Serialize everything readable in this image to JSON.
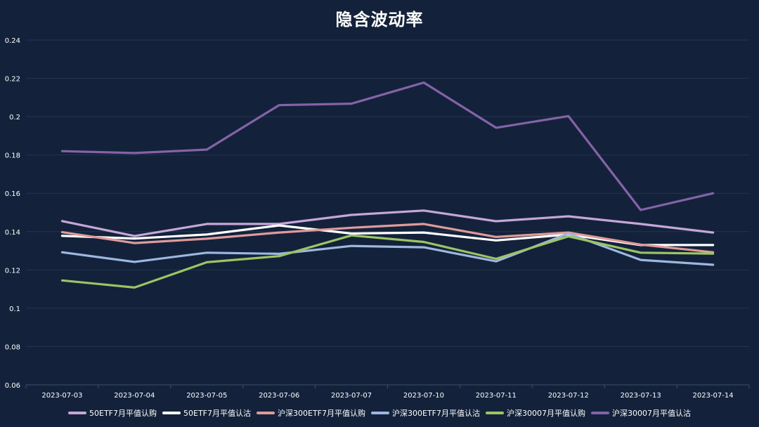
{
  "chart_data": {
    "type": "line",
    "title": "隐含波动率",
    "xlabel": "",
    "ylabel": "",
    "categories": [
      "2023-07-03",
      "2023-07-04",
      "2023-07-05",
      "2023-07-06",
      "2023-07-07",
      "2023-07-10",
      "2023-07-11",
      "2023-07-12",
      "2023-07-13",
      "2023-07-14"
    ],
    "ylim": [
      0.06,
      0.24
    ],
    "yticks": [
      "0.06",
      "0.08",
      "0.1",
      "0.12",
      "0.14",
      "0.16",
      "0.18",
      "0.2",
      "0.22",
      "0.24"
    ],
    "grid": true,
    "legend_position": "bottom",
    "series": [
      {
        "name": "50ETF7月平值认购",
        "color": "#c6a6d8",
        "values": [
          0.1455,
          0.1377,
          0.144,
          0.144,
          0.1487,
          0.151,
          0.1454,
          0.148,
          0.144,
          0.1395
        ]
      },
      {
        "name": "50ETF7月平值认沽",
        "color": "#ffffff",
        "values": [
          0.1378,
          0.1364,
          0.1385,
          0.1432,
          0.139,
          0.1395,
          0.1354,
          0.1385,
          0.133,
          0.133
        ]
      },
      {
        "name": "沪深300ETF7月平值认购",
        "color": "#e09a9a",
        "values": [
          0.1397,
          0.134,
          0.1363,
          0.1395,
          0.142,
          0.144,
          0.1372,
          0.1395,
          0.1332,
          0.1292
        ]
      },
      {
        "name": "沪深300ETF7月平值认沽",
        "color": "#9db7e0",
        "values": [
          0.1292,
          0.1242,
          0.129,
          0.1284,
          0.1325,
          0.1318,
          0.1245,
          0.139,
          0.1252,
          0.1227
        ]
      },
      {
        "name": "沪深30007月平值认购",
        "color": "#9cc464",
        "values": [
          0.1145,
          0.1108,
          0.124,
          0.1272,
          0.138,
          0.1346,
          0.1258,
          0.1375,
          0.129,
          0.1285
        ]
      },
      {
        "name": "沪深30007月平值认沽",
        "color": "#8463a8",
        "values": [
          0.182,
          0.181,
          0.1828,
          0.206,
          0.2068,
          0.2178,
          0.1942,
          0.2003,
          0.1513,
          0.16
        ]
      }
    ]
  }
}
